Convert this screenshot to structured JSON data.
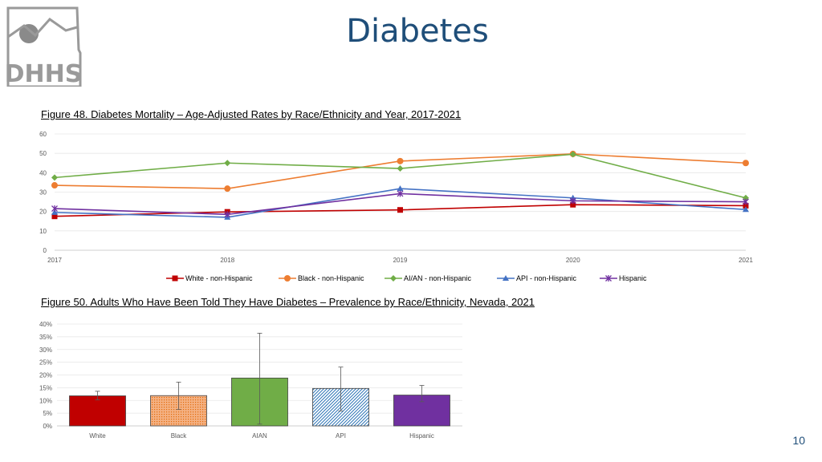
{
  "page": {
    "title": "Diabetes",
    "page_number": "10"
  },
  "logo": {
    "text": "DHHS"
  },
  "chart_data": [
    {
      "type": "line",
      "title": "Figure 48. Diabetes Mortality – Age-Adjusted Rates by Race/Ethnicity and Year, 2017-2021",
      "xlabel": "",
      "ylabel": "",
      "x": [
        "2017",
        "2018",
        "2019",
        "2020",
        "2021"
      ],
      "ylim": [
        0,
        60
      ],
      "yticks": [
        "0",
        "10",
        "20",
        "30",
        "40",
        "50",
        "60"
      ],
      "legend_position": "bottom",
      "series": [
        {
          "name": "White - non-Hispanic",
          "color": "#c00000",
          "marker": "square",
          "values": [
            17.5,
            19.8,
            20.8,
            23.5,
            23.0
          ]
        },
        {
          "name": "Black - non-Hispanic",
          "color": "#ed7d31",
          "marker": "circle",
          "values": [
            33.5,
            31.8,
            46.0,
            49.7,
            45.0
          ]
        },
        {
          "name": "AI/AN - non-Hispanic",
          "color": "#70ad47",
          "marker": "diamond",
          "values": [
            37.5,
            45.0,
            42.2,
            49.5,
            27.0
          ]
        },
        {
          "name": "API - non-Hispanic",
          "color": "#4472c4",
          "marker": "triangle",
          "values": [
            19.5,
            17.0,
            31.8,
            27.0,
            21.0
          ]
        },
        {
          "name": "Hispanic",
          "color": "#7030a0",
          "marker": "star",
          "values": [
            21.5,
            18.5,
            29.2,
            25.5,
            25.0
          ]
        }
      ]
    },
    {
      "type": "bar",
      "title": "Figure 50. Adults Who Have Been Told They Have Diabetes – Prevalence by Race/Ethnicity, Nevada, 2021",
      "xlabel": "",
      "ylabel": "",
      "categories": [
        "White",
        "Black",
        "AIAN",
        "API",
        "Hispanic"
      ],
      "values": [
        11.8,
        11.9,
        18.8,
        14.7,
        12.1
      ],
      "error_low": [
        10.2,
        6.5,
        0.7,
        5.9,
        9.5
      ],
      "error_high": [
        13.6,
        17.2,
        36.4,
        23.1,
        15.9
      ],
      "colors": [
        "#c00000",
        "#f4b183",
        "#70ad47",
        "#9dc3e6",
        "#7030a0"
      ],
      "ylim": [
        0,
        40
      ],
      "yticks": [
        "0%",
        "5%",
        "10%",
        "15%",
        "20%",
        "25%",
        "30%",
        "35%",
        "40%"
      ]
    }
  ]
}
